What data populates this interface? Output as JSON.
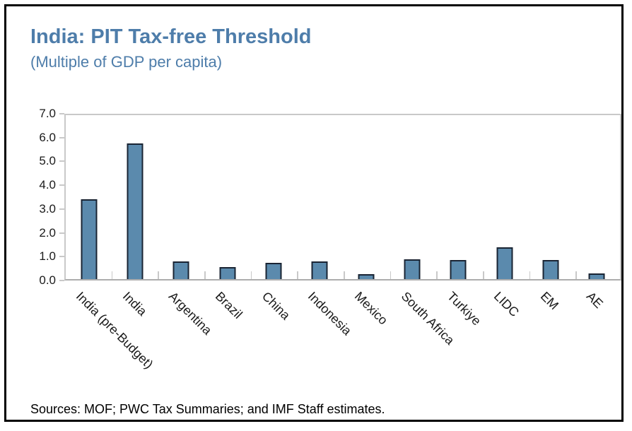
{
  "title": "India: PIT Tax-free Threshold",
  "subtitle": "(Multiple of GDP per capita)",
  "source": "Sources: MOF; PWC Tax Summaries; and IMF Staff estimates.",
  "colors": {
    "title_text": "#4E7DAA",
    "bar_fill": "#5B8AAD",
    "bar_border": "#1A2433",
    "axis_line": "#C9C9C9",
    "axis_text": "#1A1A1A",
    "outer_border": "#000000"
  },
  "chart_data": {
    "type": "bar",
    "title": "India: PIT Tax-free Threshold",
    "subtitle": "(Multiple of GDP per capita)",
    "categories": [
      "India (pre-Budget)",
      "India",
      "Argentina",
      "Brazil",
      "China",
      "Indonesia",
      "Mexico",
      "South Africa",
      "Turkiye",
      "LIDC",
      "EM",
      "AE"
    ],
    "values": [
      3.4,
      5.8,
      0.75,
      0.5,
      0.7,
      0.75,
      0.2,
      0.85,
      0.8,
      1.35,
      0.8,
      0.25
    ],
    "xlabel": "",
    "ylabel": "",
    "ylim": [
      0,
      7
    ],
    "ytick_step": 1.0,
    "ytick_labels": [
      "0.0",
      "1.0",
      "2.0",
      "3.0",
      "4.0",
      "5.0",
      "6.0",
      "7.0"
    ],
    "grid": false,
    "legend": false,
    "xlabel_rotation_deg": 45,
    "source_note": "Sources: MOF; PWC Tax Summaries; and IMF Staff estimates."
  }
}
